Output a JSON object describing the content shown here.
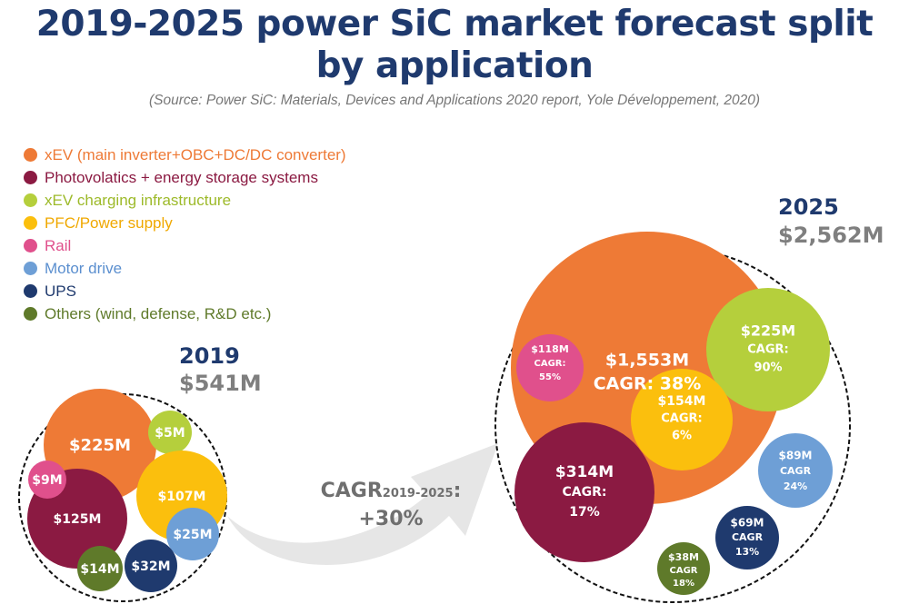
{
  "title": "2019-2025 power SiC market forecast split by application",
  "title_line1": "2019-2025 power SiC market forecast split",
  "title_line2": "by application",
  "source": "(Source: Power SiC: Materials, Devices and Applications 2020 report, Yole Développement, 2020)",
  "legend": [
    {
      "label": "xEV (main inverter+OBC+DC/DC converter)",
      "color": "#ee7a36",
      "text_color": "#ee7a36"
    },
    {
      "label": "Photovolatics + energy storage systems",
      "color": "#8b1a42",
      "text_color": "#8b1a42"
    },
    {
      "label": "xEV charging infrastructure",
      "color": "#b5cf3c",
      "text_color": "#9dba2a"
    },
    {
      "label": "PFC/Power supply",
      "color": "#fbbf0d",
      "text_color": "#f0a800"
    },
    {
      "label": "Rail",
      "color": "#e0508c",
      "text_color": "#e0508c"
    },
    {
      "label": "Motor drive",
      "color": "#6e9fd6",
      "text_color": "#5b8fcf"
    },
    {
      "label": "UPS",
      "color": "#1f3a6e",
      "text_color": "#1f3a6e"
    },
    {
      "label": "Others (wind, defense, R&D etc.)",
      "color": "#5f7a2a",
      "text_color": "#5f7a2a"
    }
  ],
  "growth": {
    "main": "CAGR",
    "period": "2019-2025",
    "suffix": ":",
    "value": "+30%"
  },
  "chart_data": {
    "type": "bubble",
    "title": "2019-2025 power SiC market forecast split by application",
    "unit": "USD",
    "overall_cagr": "+30%",
    "groups": [
      {
        "year": "2019",
        "total": "$541M",
        "total_value": 541,
        "bubbles": [
          {
            "application": "xEV (main inverter+OBC+DC/DC converter)",
            "label": "$225M",
            "value": 225,
            "color": "#ee7a36"
          },
          {
            "application": "xEV charging infrastructure",
            "label": "$5M",
            "value": 5,
            "color": "#b5cf3c"
          },
          {
            "application": "PFC/Power supply",
            "label": "$107M",
            "value": 107,
            "color": "#fbbf0d"
          },
          {
            "application": "Photovolatics + energy storage systems",
            "label": "$125M",
            "value": 125,
            "color": "#8b1a42"
          },
          {
            "application": "Rail",
            "label": "$9M",
            "value": 9,
            "color": "#e0508c"
          },
          {
            "application": "Motor drive",
            "label": "$25M",
            "value": 25,
            "color": "#6e9fd6"
          },
          {
            "application": "UPS",
            "label": "$32M",
            "value": 32,
            "color": "#1f3a6e"
          },
          {
            "application": "Others (wind, defense, R&D etc.)",
            "label": "$14M",
            "value": 14,
            "color": "#5f7a2a"
          }
        ]
      },
      {
        "year": "2025",
        "total": "$2,562M",
        "total_value": 2562,
        "bubbles": [
          {
            "application": "xEV (main inverter+OBC+DC/DC converter)",
            "label": "$1,553M",
            "cagr": "CAGR: 38%",
            "value": 1553,
            "color": "#ee7a36"
          },
          {
            "application": "xEV charging infrastructure",
            "label": "$225M",
            "cagr": "CAGR: 90%",
            "value": 225,
            "color": "#b5cf3c"
          },
          {
            "application": "Rail",
            "label": "$118M",
            "cagr": "CAGR: 55%",
            "value": 118,
            "color": "#e0508c"
          },
          {
            "application": "PFC/Power supply",
            "label": "$154M",
            "cagr": "CAGR: 6%",
            "value": 154,
            "color": "#fbbf0d"
          },
          {
            "application": "Photovolatics + energy storage systems",
            "label": "$314M",
            "cagr": "CAGR: 17%",
            "value": 314,
            "color": "#8b1a42"
          },
          {
            "application": "Motor drive",
            "label": "$89M",
            "cagr": "CAGR 24%",
            "value": 89,
            "color": "#6e9fd6"
          },
          {
            "application": "UPS",
            "label": "$69M",
            "cagr": "CAGR 13%",
            "value": 69,
            "color": "#1f3a6e"
          },
          {
            "application": "Others (wind, defense, R&D etc.)",
            "label": "$38M",
            "cagr": "CAGR 18%",
            "value": 38,
            "color": "#5f7a2a"
          }
        ]
      }
    ]
  }
}
